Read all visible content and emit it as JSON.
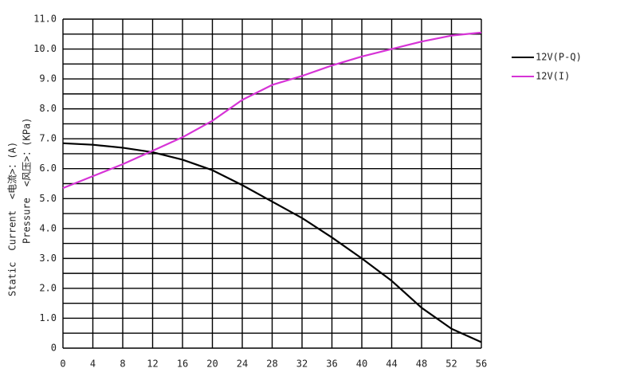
{
  "chart_data": {
    "type": "line",
    "x": [
      0,
      4,
      8,
      12,
      16,
      20,
      24,
      28,
      32,
      36,
      40,
      44,
      48,
      52,
      56
    ],
    "series": [
      {
        "name": "12V(P-Q)",
        "color": "#000000",
        "values": [
          6.85,
          6.8,
          6.7,
          6.55,
          6.3,
          5.95,
          5.45,
          4.9,
          4.35,
          3.7,
          3.0,
          2.25,
          1.35,
          0.65,
          0.2
        ]
      },
      {
        "name": "12V(I)",
        "color": "#d633d6",
        "values": [
          5.35,
          5.75,
          6.15,
          6.6,
          7.05,
          7.6,
          8.3,
          8.8,
          9.1,
          9.45,
          9.75,
          10.0,
          10.25,
          10.45,
          10.55
        ]
      }
    ],
    "xlim": [
      0,
      56
    ],
    "xticks": [
      0,
      4,
      8,
      12,
      16,
      20,
      24,
      28,
      32,
      36,
      40,
      44,
      48,
      52,
      56
    ],
    "ylim": [
      0,
      11
    ],
    "yticks": [
      0,
      {
        "value": 1,
        "label": "1.0"
      },
      {
        "value": 2,
        "label": "2.0"
      },
      {
        "value": 3,
        "label": "3.0"
      },
      {
        "value": 4,
        "label": "4.0"
      },
      {
        "value": 5,
        "label": "5.0"
      },
      {
        "value": 6,
        "label": "6.0"
      },
      {
        "value": 7,
        "label": "7.0"
      },
      {
        "value": 8,
        "label": "8.0"
      },
      {
        "value": 9,
        "label": "9.0"
      },
      {
        "value": 10,
        "label": "10.0"
      },
      {
        "value": 11,
        "label": "11.0"
      }
    ],
    "y_minor_ticks": [
      0.5,
      1.5,
      2.5,
      3.5,
      4.5,
      5.5,
      6.5,
      7.5,
      8.5,
      9.5,
      10.5
    ],
    "y_label_left": [
      "Static",
      "Current",
      "<电流>：(A)"
    ],
    "y_label_left_colors": [
      "#222222",
      "#d633d6",
      "#d633d6"
    ],
    "y_label_right": [
      "Pressure",
      "<风压>：(KPa)"
    ],
    "grid": true
  }
}
